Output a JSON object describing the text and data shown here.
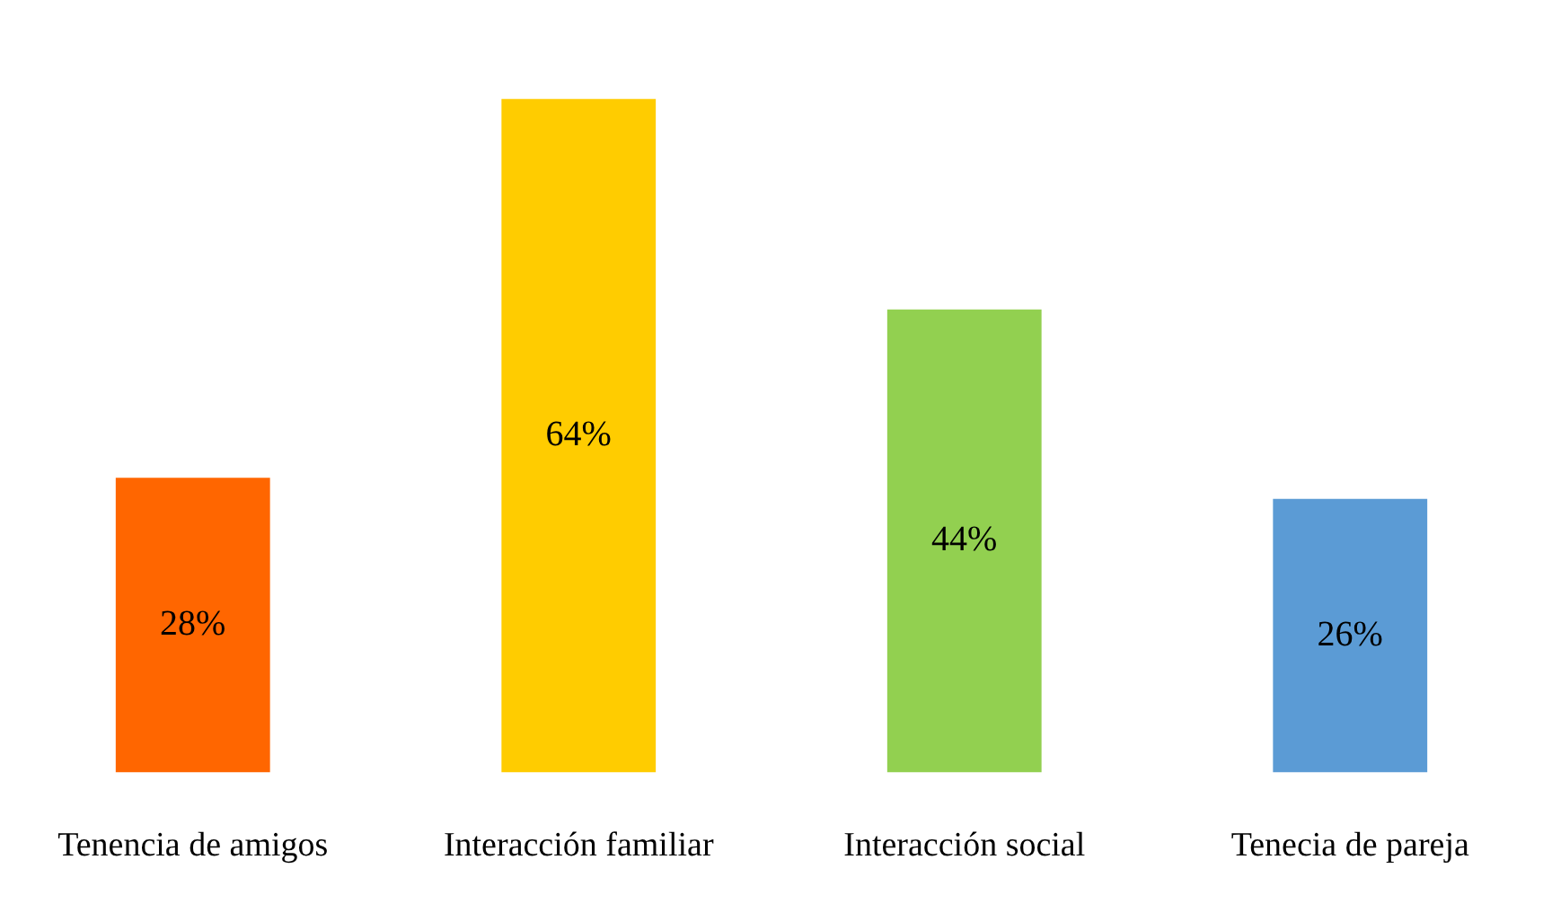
{
  "chart_data": {
    "type": "bar",
    "categories": [
      "Tenencia de amigos",
      "Interacción familiar",
      "Interacción social",
      "Tenecia de pareja"
    ],
    "values": [
      28,
      64,
      44,
      26
    ],
    "colors": [
      "#ff6600",
      "#ffcc00",
      "#92d050",
      "#5b9bd5"
    ],
    "data_labels": true,
    "value_labels": [
      "28%",
      "64%",
      "44%",
      "26%"
    ],
    "grid": false,
    "legend": false
  }
}
